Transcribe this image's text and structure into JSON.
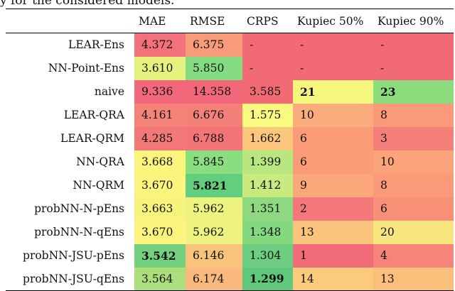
{
  "caption": "y for the considered models.",
  "table": {
    "headers": [
      "",
      "MAE",
      "RMSE",
      "CRPS",
      "Kupiec 50%",
      "Kupiec 90%"
    ],
    "rows": [
      {
        "model": "LEAR-Ens",
        "cells": [
          {
            "text": "4.372",
            "bg": "#f2717a",
            "bold": false
          },
          {
            "text": "6.375",
            "bg": "#f99a78",
            "bold": false
          },
          {
            "text": "-",
            "bg": "#f26a74",
            "bold": false
          },
          {
            "text": "-",
            "bg": "#f26a74",
            "bold": false
          },
          {
            "text": "-",
            "bg": "#f26a74",
            "bold": false
          }
        ]
      },
      {
        "model": "NN-Point-Ens",
        "cells": [
          {
            "text": "3.610",
            "bg": "#e6f27e",
            "bold": false
          },
          {
            "text": "5.850",
            "bg": "#84dc80",
            "bold": false
          },
          {
            "text": "-",
            "bg": "#f26a74",
            "bold": false
          },
          {
            "text": "-",
            "bg": "#f26a74",
            "bold": false
          },
          {
            "text": "-",
            "bg": "#f26a74",
            "bold": false
          }
        ]
      },
      {
        "model": "naive",
        "cells": [
          {
            "text": "9.336",
            "bg": "#f2677a",
            "bold": false
          },
          {
            "text": "14.358",
            "bg": "#f2677a",
            "bold": false
          },
          {
            "text": "3.585",
            "bg": "#f26a74",
            "bold": false
          },
          {
            "text": "21",
            "bg": "#f4f77c",
            "bold": true
          },
          {
            "text": "23",
            "bg": "#8cdc7e",
            "bold": true
          }
        ]
      },
      {
        "model": "LEAR-QRA",
        "cells": [
          {
            "text": "4.161",
            "bg": "#f5837a",
            "bold": false
          },
          {
            "text": "6.676",
            "bg": "#f4807a",
            "bold": false
          },
          {
            "text": "1.575",
            "bg": "#fafa80",
            "bold": false
          },
          {
            "text": "10",
            "bg": "#faac7c",
            "bold": false
          },
          {
            "text": "8",
            "bg": "#fa9a78",
            "bold": false
          }
        ]
      },
      {
        "model": "LEAR-QRM",
        "cells": [
          {
            "text": "4.285",
            "bg": "#f37979",
            "bold": false
          },
          {
            "text": "6.788",
            "bg": "#f37578",
            "bold": false
          },
          {
            "text": "1.662",
            "bg": "#fbc77d",
            "bold": false
          },
          {
            "text": "6",
            "bg": "#fb9c78",
            "bold": false
          },
          {
            "text": "3",
            "bg": "#f5807a",
            "bold": false
          }
        ]
      },
      {
        "model": "NN-QRA",
        "cells": [
          {
            "text": "3.668",
            "bg": "#fbf57e",
            "bold": false
          },
          {
            "text": "5.845",
            "bg": "#8ade80",
            "bold": false
          },
          {
            "text": "1.399",
            "bg": "#b8e77f",
            "bold": false
          },
          {
            "text": "6",
            "bg": "#fb9c78",
            "bold": false
          },
          {
            "text": "10",
            "bg": "#fba47a",
            "bold": false
          }
        ]
      },
      {
        "model": "NN-QRM",
        "cells": [
          {
            "text": "3.670",
            "bg": "#fbf57e",
            "bold": false
          },
          {
            "text": "5.821",
            "bg": "#62cf7e",
            "bold": true
          },
          {
            "text": "1.412",
            "bg": "#c9ea7f",
            "bold": false
          },
          {
            "text": "9",
            "bg": "#faa87a",
            "bold": false
          },
          {
            "text": "8",
            "bg": "#fa9a78",
            "bold": false
          }
        ]
      },
      {
        "model": "probNN-N-pEns",
        "cells": [
          {
            "text": "3.663",
            "bg": "#f7f47e",
            "bold": false
          },
          {
            "text": "5.962",
            "bg": "#eef27e",
            "bold": false
          },
          {
            "text": "1.351",
            "bg": "#8ed97f",
            "bold": false
          },
          {
            "text": "2",
            "bg": "#f4787a",
            "bold": false
          },
          {
            "text": "6",
            "bg": "#f89078",
            "bold": false
          }
        ]
      },
      {
        "model": "probNN-N-qEns",
        "cells": [
          {
            "text": "3.670",
            "bg": "#fbf57e",
            "bold": false
          },
          {
            "text": "5.962",
            "bg": "#eef27e",
            "bold": false
          },
          {
            "text": "1.348",
            "bg": "#84d87f",
            "bold": false
          },
          {
            "text": "13",
            "bg": "#fbc47d",
            "bold": false
          },
          {
            "text": "20",
            "bg": "#f8e57d",
            "bold": false
          }
        ]
      },
      {
        "model": "probNN-JSU-pEns",
        "cells": [
          {
            "text": "3.542",
            "bg": "#74d07f",
            "bold": true
          },
          {
            "text": "6.146",
            "bg": "#fac37c",
            "bold": false
          },
          {
            "text": "1.304",
            "bg": "#6dcd80",
            "bold": false
          },
          {
            "text": "1",
            "bg": "#f06c78",
            "bold": false
          },
          {
            "text": "4",
            "bg": "#f5847a",
            "bold": false
          }
        ]
      },
      {
        "model": "probNN-JSU-qEns",
        "cells": [
          {
            "text": "3.564",
            "bg": "#acde7e",
            "bold": false
          },
          {
            "text": "6.174",
            "bg": "#fab97c",
            "bold": false
          },
          {
            "text": "1.299",
            "bg": "#5fc87c",
            "bold": true
          },
          {
            "text": "14",
            "bg": "#fbca7d",
            "bold": false
          },
          {
            "text": "13",
            "bg": "#fbbf7c",
            "bold": false
          }
        ]
      }
    ]
  }
}
